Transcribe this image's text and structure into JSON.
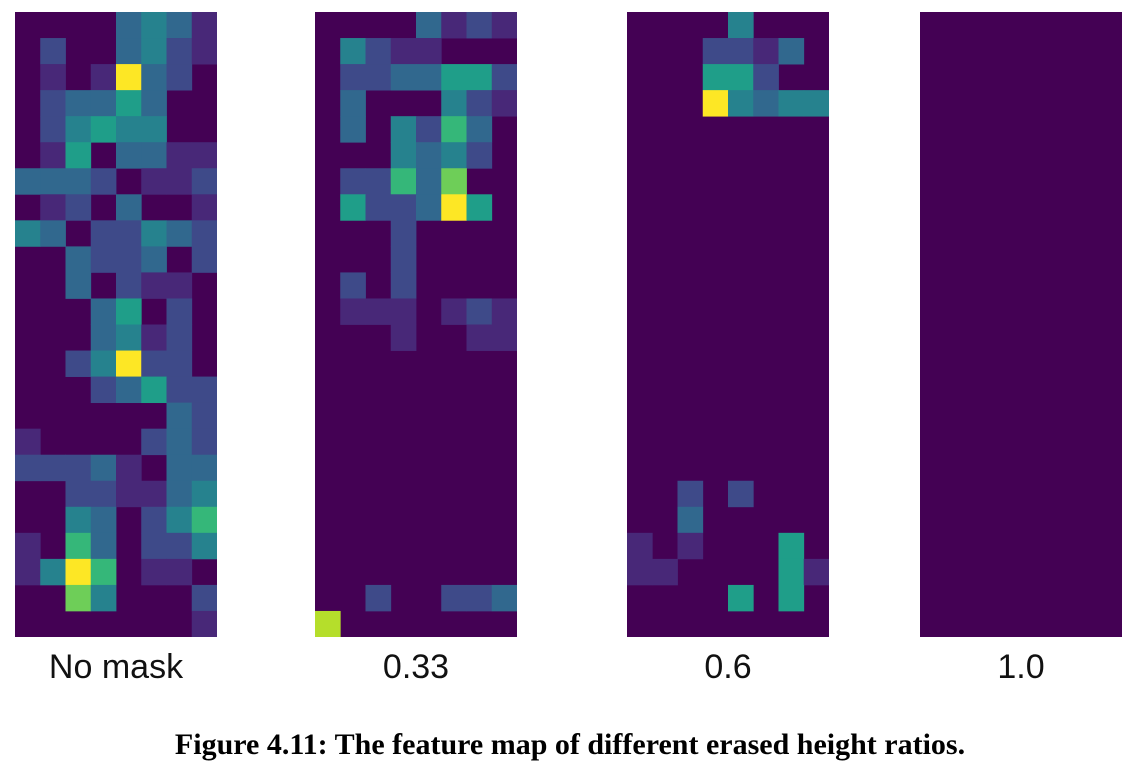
{
  "figure": {
    "caption": "Figure 4.11: The feature map of different erased height ratios.",
    "colormap": [
      "#440154",
      "#482878",
      "#3e4a89",
      "#31688e",
      "#26828e",
      "#1f9e89",
      "#35b779",
      "#6ece58",
      "#b5de2b",
      "#fde725"
    ]
  },
  "chart_data": {
    "type": "heatmap",
    "grid": {
      "cols": 8,
      "rows": 24
    },
    "background_value": 0,
    "panels": [
      {
        "label": "No mask",
        "cells": [
          [
            4,
            0,
            3
          ],
          [
            5,
            0,
            4
          ],
          [
            6,
            0,
            3
          ],
          [
            7,
            0,
            1
          ],
          [
            1,
            1,
            2
          ],
          [
            4,
            1,
            3
          ],
          [
            5,
            1,
            4
          ],
          [
            6,
            1,
            2
          ],
          [
            7,
            1,
            1
          ],
          [
            1,
            2,
            1
          ],
          [
            3,
            2,
            1
          ],
          [
            4,
            2,
            9
          ],
          [
            5,
            2,
            3
          ],
          [
            6,
            2,
            2
          ],
          [
            1,
            3,
            2
          ],
          [
            2,
            3,
            3
          ],
          [
            3,
            3,
            3
          ],
          [
            4,
            3,
            5
          ],
          [
            5,
            3,
            3
          ],
          [
            1,
            4,
            2
          ],
          [
            2,
            4,
            4
          ],
          [
            3,
            4,
            5
          ],
          [
            4,
            4,
            4
          ],
          [
            5,
            4,
            4
          ],
          [
            1,
            5,
            1
          ],
          [
            2,
            5,
            5
          ],
          [
            4,
            5,
            3
          ],
          [
            5,
            5,
            3
          ],
          [
            6,
            5,
            1
          ],
          [
            7,
            5,
            1
          ],
          [
            0,
            6,
            3
          ],
          [
            1,
            6,
            3
          ],
          [
            2,
            6,
            3
          ],
          [
            3,
            6,
            2
          ],
          [
            5,
            6,
            1
          ],
          [
            6,
            6,
            1
          ],
          [
            7,
            6,
            2
          ],
          [
            1,
            7,
            1
          ],
          [
            2,
            7,
            2
          ],
          [
            4,
            7,
            3
          ],
          [
            7,
            7,
            1
          ],
          [
            0,
            8,
            4
          ],
          [
            1,
            8,
            3
          ],
          [
            3,
            8,
            2
          ],
          [
            4,
            8,
            2
          ],
          [
            5,
            8,
            4
          ],
          [
            6,
            8,
            3
          ],
          [
            7,
            8,
            2
          ],
          [
            2,
            9,
            3
          ],
          [
            3,
            9,
            2
          ],
          [
            4,
            9,
            2
          ],
          [
            5,
            9,
            3
          ],
          [
            7,
            9,
            2
          ],
          [
            2,
            10,
            3
          ],
          [
            4,
            10,
            2
          ],
          [
            5,
            10,
            1
          ],
          [
            6,
            10,
            1
          ],
          [
            3,
            11,
            3
          ],
          [
            4,
            11,
            5
          ],
          [
            6,
            11,
            2
          ],
          [
            3,
            12,
            3
          ],
          [
            4,
            12,
            4
          ],
          [
            5,
            12,
            1
          ],
          [
            6,
            12,
            2
          ],
          [
            2,
            13,
            2
          ],
          [
            3,
            13,
            4
          ],
          [
            4,
            13,
            9
          ],
          [
            5,
            13,
            2
          ],
          [
            6,
            13,
            2
          ],
          [
            3,
            14,
            2
          ],
          [
            4,
            14,
            3
          ],
          [
            5,
            14,
            5
          ],
          [
            6,
            14,
            2
          ],
          [
            7,
            14,
            2
          ],
          [
            6,
            15,
            3
          ],
          [
            7,
            15,
            2
          ],
          [
            0,
            16,
            1
          ],
          [
            5,
            16,
            2
          ],
          [
            6,
            16,
            3
          ],
          [
            7,
            16,
            2
          ],
          [
            0,
            17,
            2
          ],
          [
            1,
            17,
            2
          ],
          [
            2,
            17,
            2
          ],
          [
            3,
            17,
            3
          ],
          [
            4,
            17,
            1
          ],
          [
            6,
            17,
            3
          ],
          [
            7,
            17,
            3
          ],
          [
            2,
            18,
            2
          ],
          [
            3,
            18,
            2
          ],
          [
            4,
            18,
            1
          ],
          [
            5,
            18,
            1
          ],
          [
            6,
            18,
            3
          ],
          [
            7,
            18,
            4
          ],
          [
            2,
            19,
            4
          ],
          [
            3,
            19,
            3
          ],
          [
            5,
            19,
            2
          ],
          [
            6,
            19,
            4
          ],
          [
            7,
            19,
            6
          ],
          [
            0,
            20,
            1
          ],
          [
            2,
            20,
            6
          ],
          [
            3,
            20,
            3
          ],
          [
            5,
            20,
            2
          ],
          [
            6,
            20,
            2
          ],
          [
            7,
            20,
            4
          ],
          [
            0,
            21,
            1
          ],
          [
            1,
            21,
            4
          ],
          [
            2,
            21,
            9
          ],
          [
            3,
            21,
            6
          ],
          [
            5,
            21,
            1
          ],
          [
            6,
            21,
            1
          ],
          [
            2,
            22,
            7
          ],
          [
            3,
            22,
            4
          ],
          [
            7,
            22,
            2
          ],
          [
            7,
            23,
            1
          ]
        ]
      },
      {
        "label": "0.33",
        "cells": [
          [
            4,
            0,
            3
          ],
          [
            5,
            0,
            1
          ],
          [
            6,
            0,
            2
          ],
          [
            7,
            0,
            1
          ],
          [
            1,
            1,
            4
          ],
          [
            2,
            1,
            2
          ],
          [
            3,
            1,
            1
          ],
          [
            4,
            1,
            1
          ],
          [
            1,
            2,
            2
          ],
          [
            2,
            2,
            2
          ],
          [
            3,
            2,
            3
          ],
          [
            4,
            2,
            3
          ],
          [
            5,
            2,
            5
          ],
          [
            6,
            2,
            5
          ],
          [
            7,
            2,
            2
          ],
          [
            1,
            3,
            3
          ],
          [
            5,
            3,
            4
          ],
          [
            6,
            3,
            2
          ],
          [
            7,
            3,
            1
          ],
          [
            1,
            4,
            3
          ],
          [
            3,
            4,
            4
          ],
          [
            4,
            4,
            2
          ],
          [
            5,
            4,
            6
          ],
          [
            6,
            4,
            3
          ],
          [
            3,
            5,
            4
          ],
          [
            4,
            5,
            3
          ],
          [
            5,
            5,
            4
          ],
          [
            6,
            5,
            2
          ],
          [
            1,
            6,
            2
          ],
          [
            2,
            6,
            2
          ],
          [
            3,
            6,
            6
          ],
          [
            4,
            6,
            3
          ],
          [
            5,
            6,
            7
          ],
          [
            1,
            7,
            5
          ],
          [
            2,
            7,
            2
          ],
          [
            3,
            7,
            2
          ],
          [
            4,
            7,
            3
          ],
          [
            5,
            7,
            9
          ],
          [
            6,
            7,
            5
          ],
          [
            3,
            8,
            2
          ],
          [
            3,
            9,
            2
          ],
          [
            1,
            10,
            2
          ],
          [
            3,
            10,
            2
          ],
          [
            1,
            11,
            1
          ],
          [
            2,
            11,
            1
          ],
          [
            3,
            11,
            1
          ],
          [
            5,
            11,
            1
          ],
          [
            6,
            11,
            2
          ],
          [
            7,
            11,
            1
          ],
          [
            3,
            12,
            1
          ],
          [
            6,
            12,
            1
          ],
          [
            7,
            12,
            1
          ],
          [
            2,
            22,
            2
          ],
          [
            5,
            22,
            2
          ],
          [
            6,
            22,
            2
          ],
          [
            7,
            22,
            3
          ],
          [
            0,
            23,
            8
          ]
        ]
      },
      {
        "label": "0.6",
        "cells": [
          [
            4,
            0,
            4
          ],
          [
            3,
            1,
            2
          ],
          [
            4,
            1,
            2
          ],
          [
            5,
            1,
            1
          ],
          [
            6,
            1,
            3
          ],
          [
            3,
            2,
            5
          ],
          [
            4,
            2,
            5
          ],
          [
            5,
            2,
            2
          ],
          [
            3,
            3,
            9
          ],
          [
            4,
            3,
            4
          ],
          [
            5,
            3,
            3
          ],
          [
            6,
            3,
            4
          ],
          [
            7,
            3,
            4
          ],
          [
            2,
            18,
            2
          ],
          [
            4,
            18,
            2
          ],
          [
            2,
            19,
            3
          ],
          [
            0,
            20,
            1
          ],
          [
            2,
            20,
            1
          ],
          [
            6,
            20,
            5
          ],
          [
            0,
            21,
            1
          ],
          [
            1,
            21,
            1
          ],
          [
            6,
            21,
            5
          ],
          [
            7,
            21,
            1
          ],
          [
            4,
            22,
            5
          ],
          [
            6,
            22,
            5
          ]
        ]
      },
      {
        "label": "1.0",
        "cells": []
      }
    ]
  }
}
